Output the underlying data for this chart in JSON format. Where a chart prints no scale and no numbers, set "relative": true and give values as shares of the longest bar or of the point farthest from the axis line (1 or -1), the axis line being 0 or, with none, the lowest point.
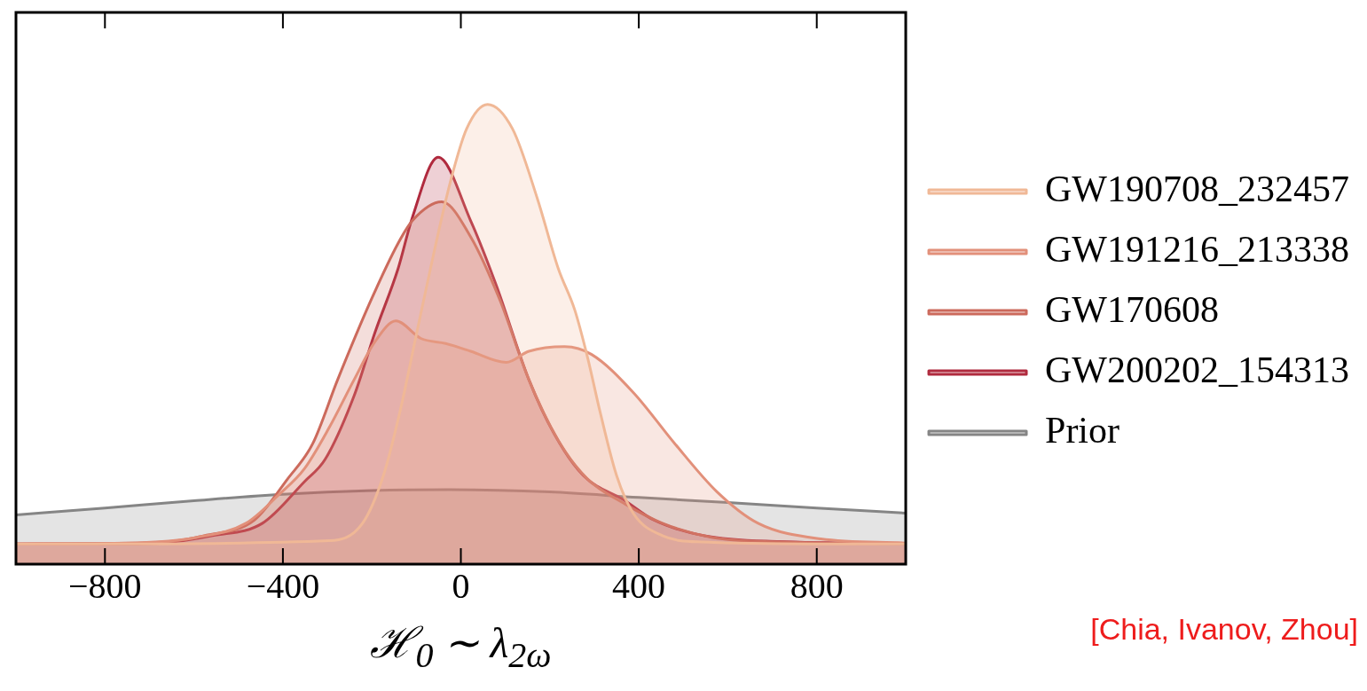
{
  "chart_data": {
    "type": "area",
    "relative": true,
    "xlabel": "ℋ$_{0}$ ∼ λ$_{2ω}$",
    "xlim": [
      -1000,
      1000
    ],
    "xticks": [
      {
        "value": -800,
        "label": "−800"
      },
      {
        "value": -400,
        "label": "−400"
      },
      0,
      400,
      800
    ],
    "grid": false,
    "legend": "right",
    "line_style": "solid",
    "marker": "none",
    "annotations": [
      "[Chia, Ivanov, Zhou]"
    ],
    "series": [
      {
        "name": "GW190708_232457",
        "color": "#f0b896",
        "x": [
          -1000,
          -800,
          -296,
          -221,
          -174,
          -137,
          -99,
          -62,
          -24,
          13,
          60,
          116,
          172,
          219,
          256,
          285,
          313,
          350,
          388,
          453,
          547,
          800,
          1000
        ],
        "values": [
          0.044,
          0.044,
          0.051,
          0.089,
          0.193,
          0.331,
          0.504,
          0.671,
          0.83,
          0.947,
          1.0,
          0.947,
          0.795,
          0.643,
          0.553,
          0.449,
          0.331,
          0.193,
          0.11,
          0.062,
          0.048,
          0.044,
          0.044
        ]
      },
      {
        "name": "GW191216_213338",
        "color": "#e2907a",
        "x": [
          -1000,
          -800,
          -689,
          -595,
          -483,
          -408,
          -352,
          -296,
          -240,
          -193,
          -146,
          -90,
          -34,
          22,
          102,
          153,
          233,
          294,
          388,
          481,
          575,
          668,
          809,
          1000
        ],
        "values": [
          0.044,
          0.045,
          0.048,
          0.058,
          0.089,
          0.152,
          0.207,
          0.297,
          0.401,
          0.484,
          0.529,
          0.491,
          0.48,
          0.463,
          0.439,
          0.463,
          0.473,
          0.456,
          0.373,
          0.262,
          0.158,
          0.089,
          0.055,
          0.046
        ]
      },
      {
        "name": "GW170608",
        "color": "#cc6a5c",
        "x": [
          -1000,
          -800,
          -670,
          -577,
          -464,
          -389,
          -333,
          -277,
          -202,
          -141,
          -109,
          -43,
          22,
          88,
          153,
          219,
          284,
          369,
          453,
          566,
          715,
          1000
        ],
        "values": [
          0.044,
          0.045,
          0.048,
          0.062,
          0.096,
          0.186,
          0.262,
          0.401,
          0.574,
          0.698,
          0.747,
          0.788,
          0.712,
          0.574,
          0.401,
          0.269,
          0.186,
          0.131,
          0.089,
          0.058,
          0.048,
          0.044
        ]
      },
      {
        "name": "GW200202_154313",
        "color": "#b02a3e",
        "x": [
          -1000,
          -750,
          -670,
          -558,
          -446,
          -352,
          -305,
          -240,
          -193,
          -141,
          -109,
          -51,
          22,
          79,
          153,
          210,
          275,
          369,
          434,
          547,
          715,
          1000
        ],
        "values": [
          0.044,
          0.044,
          0.046,
          0.062,
          0.089,
          0.179,
          0.228,
          0.366,
          0.504,
          0.643,
          0.754,
          0.885,
          0.747,
          0.608,
          0.401,
          0.283,
          0.193,
          0.138,
          0.096,
          0.062,
          0.049,
          0.045
        ]
      },
      {
        "name": "Prior",
        "color": "#858585",
        "x": [
          -1000,
          -800,
          -600,
          -400,
          -200,
          -30,
          200,
          400,
          600,
          800,
          1000
        ],
        "values": [
          0.107,
          0.122,
          0.138,
          0.152,
          0.16,
          0.162,
          0.157,
          0.145,
          0.134,
          0.122,
          0.111
        ]
      }
    ]
  }
}
